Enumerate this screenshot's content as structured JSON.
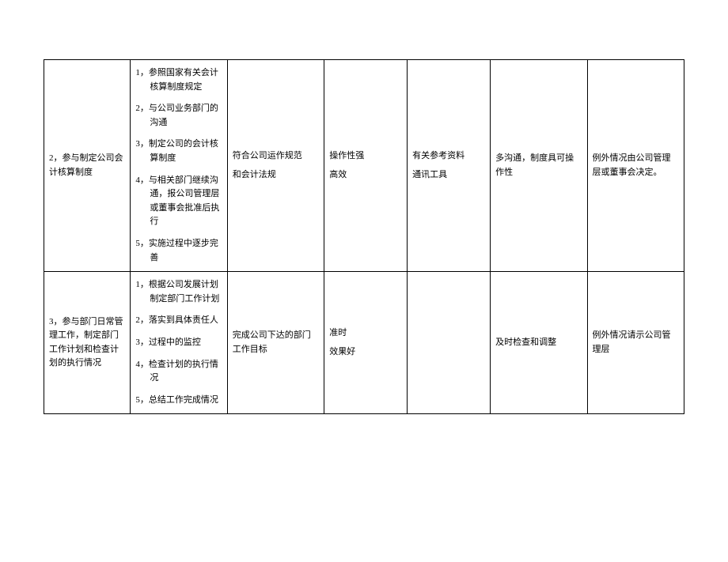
{
  "table": {
    "type": "table",
    "border_color": "#000000",
    "background_color": "#ffffff",
    "text_color": "#000000",
    "font_size_pt": 9,
    "font_family": "SimSun",
    "line_height": 1.6,
    "column_widths_pct": [
      12.5,
      14,
      14,
      12,
      12,
      14,
      14
    ],
    "rows": [
      {
        "col1": "2，参与制定公司会计核算制度",
        "col2_steps": [
          "1，参照国家有关会计核算制度规定",
          "2，与公司业务部门的沟通",
          "3，制定公司的会计核算制度",
          "4，与相关部门继续沟通，报公司管理层或董事会批准后执行",
          "5，实施过程中逐步完善"
        ],
        "col3_lines": [
          "符合公司运作规范",
          "和会计法规"
        ],
        "col4_lines": [
          "操作性强",
          "高效"
        ],
        "col5_lines": [
          "有关参考资料",
          "通讯工具"
        ],
        "col6": "多沟通，制度具可操作性",
        "col7": "例外情况由公司管理层或董事会决定。"
      },
      {
        "col1": "3，参与部门日常管理工作，制定部门工作计划和检查计划的执行情况",
        "col2_steps": [
          "1，根据公司发展计划制定部门工作计划",
          "2，落实到具体责任人",
          "3，过程中的监控",
          "4，检查计划的执行情况",
          "5，总结工作完成情况"
        ],
        "col3_lines": [
          "完成公司下达的部门工作目标"
        ],
        "col4_lines": [
          "准时",
          "效果好"
        ],
        "col5_lines": [
          ""
        ],
        "col6": "及时检查和调整",
        "col7": "例外情况请示公司管理层"
      }
    ]
  }
}
